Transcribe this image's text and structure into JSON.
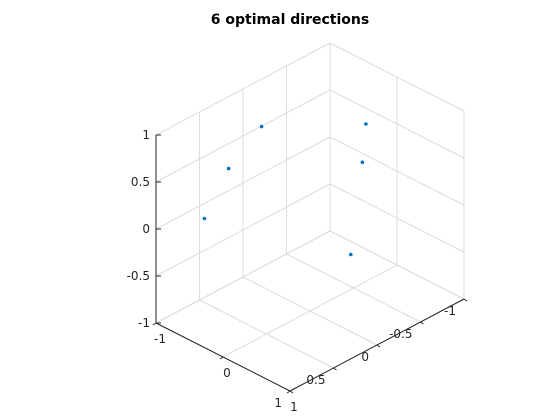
{
  "chart_data": {
    "type": "scatter",
    "title": "6 optimal directions",
    "xlabel": "",
    "ylabel": "",
    "zlabel": "",
    "xlim": [
      -1,
      1
    ],
    "ylim": [
      -1,
      1
    ],
    "zlim": [
      -1,
      1
    ],
    "grid": true,
    "view": "3d",
    "colors": {
      "marker": "#0072bd",
      "axis": "#262626",
      "grid": "#dcdcdc"
    },
    "x_ticks": [
      "-1",
      "-0.5",
      "0",
      "0.5",
      "1"
    ],
    "y_ticks": [
      "-1",
      "0",
      "1"
    ],
    "z_ticks": [
      "-1",
      "-0.5",
      "0",
      "0.5",
      "1"
    ],
    "points": [
      {
        "x": 0.04,
        "y": -0.67,
        "z": 0.74
      },
      {
        "x": 0.62,
        "y": -0.41,
        "z": 0.67
      },
      {
        "x": -0.45,
        "y": 0.25,
        "z": 0.86
      },
      {
        "x": -0.11,
        "y": 0.64,
        "z": 0.76
      },
      {
        "x": 0.27,
        "y": 0.96,
        "z": 0.08
      },
      {
        "x": 0.59,
        "y": -0.81,
        "z": -0.02
      }
    ]
  }
}
